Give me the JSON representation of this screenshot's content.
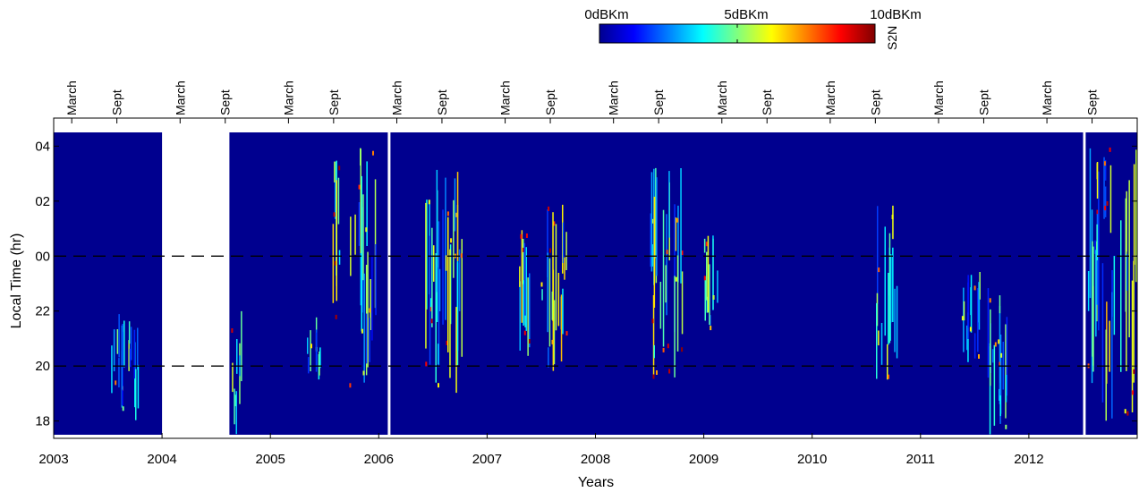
{
  "chart_data": {
    "type": "heatmap",
    "title": "",
    "xlabel": "Years",
    "ylabel": "Local Time (hr)",
    "x_range": [
      "2003-01-01",
      "2013-01-01"
    ],
    "x_ticks": [
      "2003",
      "2004",
      "2005",
      "2006",
      "2007",
      "2008",
      "2009",
      "2010",
      "2011",
      "2012"
    ],
    "y_range_hours": [
      17.5,
      28.5
    ],
    "y_ticks": [
      {
        "hour": 18,
        "label": "18"
      },
      {
        "hour": 20,
        "label": "20"
      },
      {
        "hour": 22,
        "label": "22"
      },
      {
        "hour": 24,
        "label": "00"
      },
      {
        "hour": 26,
        "label": "02"
      },
      {
        "hour": 28,
        "label": "04"
      }
    ],
    "top_month_ticks": [
      {
        "date": "2003-03",
        "label": "March"
      },
      {
        "date": "2003-08",
        "label": "Sept"
      },
      {
        "date": "2004-03",
        "label": "March"
      },
      {
        "date": "2004-08",
        "label": "Sept"
      },
      {
        "date": "2005-03",
        "label": "March"
      },
      {
        "date": "2005-08",
        "label": "Sept"
      },
      {
        "date": "2006-03",
        "label": "March"
      },
      {
        "date": "2006-08",
        "label": "Sept"
      },
      {
        "date": "2007-03",
        "label": "March"
      },
      {
        "date": "2007-08",
        "label": "Sept"
      },
      {
        "date": "2008-03",
        "label": "March"
      },
      {
        "date": "2008-08",
        "label": "Sept"
      },
      {
        "date": "2009-03",
        "label": "March"
      },
      {
        "date": "2009-08",
        "label": "Sept"
      },
      {
        "date": "2010-03",
        "label": "March"
      },
      {
        "date": "2010-08",
        "label": "Sept"
      },
      {
        "date": "2011-03",
        "label": "March"
      },
      {
        "date": "2011-08",
        "label": "Sept"
      },
      {
        "date": "2012-03",
        "label": "March"
      },
      {
        "date": "2012-08",
        "label": "Sept"
      }
    ],
    "observation_periods": [
      {
        "start": "2003-01-01",
        "end": "2004-01-01"
      },
      {
        "start": "2004-08-15",
        "end": "2006-02-01"
      },
      {
        "start": "2006-02-10",
        "end": "2012-07-01"
      },
      {
        "start": "2012-07-10",
        "end": "2013-01-01"
      }
    ],
    "reference_lines_hours": [
      24,
      20
    ],
    "activity_bursts": [
      {
        "start": "2003-07-10",
        "end": "2003-10-10",
        "hour_range": [
          18,
          22
        ],
        "peak_dBKm": 8
      },
      {
        "start": "2004-08-20",
        "end": "2004-09-30",
        "hour_range": [
          17.5,
          22
        ],
        "peak_dBKm": 10
      },
      {
        "start": "2005-05-01",
        "end": "2005-06-15",
        "hour_range": [
          19.5,
          22
        ],
        "peak_dBKm": 8
      },
      {
        "start": "2005-07-10",
        "end": "2005-08-20",
        "hour_range": [
          21,
          28
        ],
        "peak_dBKm": 10
      },
      {
        "start": "2005-09-20",
        "end": "2005-12-20",
        "hour_range": [
          19,
          28
        ],
        "peak_dBKm": 9
      },
      {
        "start": "2006-06-01",
        "end": "2006-10-15",
        "hour_range": [
          19,
          27.5
        ],
        "peak_dBKm": 10
      },
      {
        "start": "2007-04-01",
        "end": "2007-05-20",
        "hour_range": [
          20,
          25
        ],
        "peak_dBKm": 10
      },
      {
        "start": "2007-07-01",
        "end": "2007-09-30",
        "hour_range": [
          19.5,
          26
        ],
        "peak_dBKm": 10
      },
      {
        "start": "2008-07-01",
        "end": "2008-10-20",
        "hour_range": [
          19.5,
          27.5
        ],
        "peak_dBKm": 10
      },
      {
        "start": "2009-01-01",
        "end": "2009-02-20",
        "hour_range": [
          21,
          25
        ],
        "peak_dBKm": 9
      },
      {
        "start": "2010-08-01",
        "end": "2010-10-15",
        "hour_range": [
          19.5,
          26
        ],
        "peak_dBKm": 9
      },
      {
        "start": "2011-05-20",
        "end": "2011-07-20",
        "hour_range": [
          20,
          23.5
        ],
        "peak_dBKm": 8
      },
      {
        "start": "2011-08-01",
        "end": "2011-10-20",
        "hour_range": [
          17.5,
          23
        ],
        "peak_dBKm": 8
      },
      {
        "start": "2012-07-15",
        "end": "2012-12-31",
        "hour_range": [
          18,
          28
        ],
        "peak_dBKm": 10
      }
    ],
    "colorbar": {
      "min": 0,
      "max": 10,
      "tick_labels": [
        "0dBKm",
        "5dBKm",
        "10dBKm"
      ],
      "label": "S2N",
      "colormap": "jet"
    },
    "grid": false,
    "background_colour": "#00008f"
  }
}
